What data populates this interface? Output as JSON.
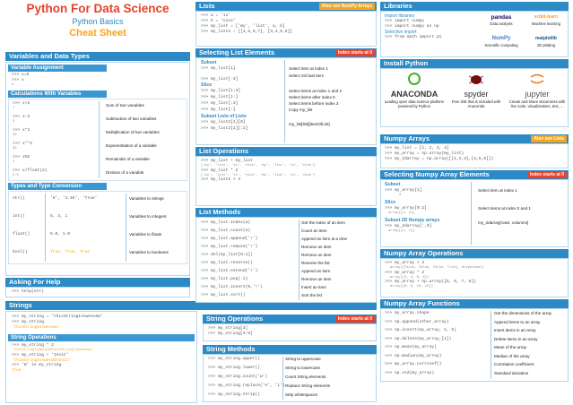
{
  "title": {
    "main": "Python For Data Science",
    "sub": "Python Basics",
    "sheet": "Cheat Sheet"
  },
  "vars": {
    "header": "Variables and Data Types",
    "assign_header": "Variable Assignment",
    "assign_code": [
      ">>> x=5",
      ">>> x"
    ],
    "assign_out": "5",
    "calc_header": "Calculations With Variables",
    "calc": [
      {
        "code": ">>> x+2",
        "out": "7",
        "desc": "Sum of two variables"
      },
      {
        "code": ">>> x-2",
        "out": "3",
        "desc": "Subtraction of two variables"
      },
      {
        "code": ">>> x*2",
        "out": "10",
        "desc": "Multiplication of two variables"
      },
      {
        "code": ">>> x**2",
        "out": "25",
        "desc": "Exponentiation of a variable"
      },
      {
        "code": ">>> x%2",
        "out": "1",
        "desc": "Remainder of a variable"
      },
      {
        "code": ">>> x/float(2)",
        "out": "2.5",
        "desc": "Division of a variable"
      }
    ],
    "types_header": "Types and Type Conversion",
    "types": [
      {
        "fn": "str()",
        "vals": "'5', '3.45', 'True'",
        "desc": "Variables to strings"
      },
      {
        "fn": "int()",
        "vals": "5, 3, 1",
        "desc": "Variables to integers"
      },
      {
        "fn": "float()",
        "vals": "5.0, 1.0",
        "desc": "Variables to floats"
      },
      {
        "fn": "bool()",
        "vals": "True, True, True",
        "desc": "Variables to booleans"
      }
    ]
  },
  "help": {
    "header": "Asking For Help",
    "code": ">>> help(str)"
  },
  "strings": {
    "header": "Strings",
    "code": [
      ">>> my_string = 'thisStringIsAwesome'",
      ">>> my_string"
    ],
    "out": "'thisStringIsAwesome'",
    "ops_header": "String Operations",
    "ops": [
      ">>> my_string * 2",
      "'thisStringIsAwesomethisStringIsAwesome'",
      ">>> my_string + 'Innit'",
      "'thisStringIsAwesomeInnit'",
      ">>> 'm' in my_string",
      "True"
    ]
  },
  "lists": {
    "header": "Lists",
    "badge": "Also see NumPy Arrays",
    "code": [
      ">>> a = 'is'",
      ">>> b = 'nice'",
      ">>> my_list = ['my', 'list', a, b]",
      ">>> my_list2 = [[4,5,6,7], [3,4,5,6]]"
    ],
    "sel_header": "Selecting List Elements",
    "sel_badge": "Index starts at 0",
    "subset": "Subset",
    "slice": "Slice",
    "sublists": "Subset Lists of Lists",
    "sel": [
      {
        "code": ">>> my_list[1]",
        "desc": "Select item at index 1"
      },
      {
        "code": ">>> my_list[-3]",
        "desc": "Select 3rd last item"
      },
      {
        "code": ">>> my_list[1:3]",
        "desc": "Select items at index 1 and 2"
      },
      {
        "code": ">>> my_list[1:]",
        "desc": "Select items after index 0"
      },
      {
        "code": ">>> my_list[:3]",
        "desc": "Select items before index 3"
      },
      {
        "code": ">>> my_list[:]",
        "desc": "Copy my_list"
      },
      {
        "code": ">>> my_list2[1][0]",
        "desc": "my_list[list][itemOfList]"
      },
      {
        "code": ">>> my_list2[1][:2]",
        "desc": ""
      }
    ],
    "ops_header": "List Operations",
    "ops": [
      ">>> my_list + my_list",
      "['my', 'list', 'is', 'nice', 'my', 'list', 'is', 'nice']",
      ">>> my_list * 2",
      "['my', 'list', 'is', 'nice', 'my', 'list', 'is', 'nice']",
      ">>> my_list2 > 4",
      "True"
    ],
    "meth_header": "List Methods",
    "meth": [
      {
        "code": ">>> my_list.index(a)",
        "desc": "Get the index of an item"
      },
      {
        "code": ">>> my_list.count(a)",
        "desc": "Count an item"
      },
      {
        "code": ">>> my_list.append('!')",
        "desc": "Append an item at a time"
      },
      {
        "code": ">>> my_list.remove('!')",
        "desc": "Remove an item"
      },
      {
        "code": ">>> del(my_list[0:1])",
        "desc": "Remove an item"
      },
      {
        "code": ">>> my_list.reverse()",
        "desc": "Reverse the list"
      },
      {
        "code": ">>> my_list.extend('!')",
        "desc": "Append an item"
      },
      {
        "code": ">>> my_list.pop(-1)",
        "desc": "Remove an item"
      },
      {
        "code": ">>> my_list.insert(0,'!')",
        "desc": "Insert an item"
      },
      {
        "code": ">>> my_list.sort()",
        "desc": "Sort the list"
      }
    ]
  },
  "strops": {
    "header": "String Operations",
    "badge": "Index starts at 0",
    "code": [
      ">>> my_string[3]",
      ">>> my_string[4:9]"
    ]
  },
  "strmeth": {
    "header": "String Methods",
    "rows": [
      {
        "code": ">>> my_string.upper()",
        "desc": "String to uppercase"
      },
      {
        "code": ">>> my_string.lower()",
        "desc": "String to lowercase"
      },
      {
        "code": ">>> my_string.count('w')",
        "desc": "Count String elements"
      },
      {
        "code": ">>> my_string.replace('e', 'i')",
        "desc": "Replace String elements"
      },
      {
        "code": ">>> my_string.strip()",
        "desc": "Strip whitespaces"
      }
    ]
  },
  "libs": {
    "header": "Libraries",
    "import_label": "Import libraries",
    "code": [
      ">>> import numpy",
      ">>> import numpy as np"
    ],
    "sel_label": "Selective import",
    "sel_code": ">>> from math import pi",
    "logos": [
      {
        "name": "pandas",
        "cap": "Data analysis"
      },
      {
        "name": "scikit-learn",
        "cap": "Machine learning"
      },
      {
        "name": "NumPy",
        "cap": "Scientific computing"
      },
      {
        "name": "matplotlib",
        "cap": "2D plotting"
      }
    ]
  },
  "install": {
    "header": "Install Python",
    "items": [
      {
        "name": "ANACONDA",
        "cap": "Leading open data science platform powered by Python"
      },
      {
        "name": "spyder",
        "cap": "Free IDE that is included with Anaconda"
      },
      {
        "name": "jupyter",
        "cap": "Create and share documents with live code, visualizations, text, ..."
      }
    ]
  },
  "numpy": {
    "header": "Numpy Arrays",
    "badge": "Also see Lists",
    "code": [
      ">>> my_list = [1, 2, 3, 4]",
      ">>> my_array = np.array(my_list)",
      ">>> my_2darray = np.array([[1,2,3],[4,5,6]])"
    ],
    "sel_header": "Selecting Numpy Array Elements",
    "sel_badge": "Index starts at 0",
    "subset": "Subset",
    "slice": "Slice",
    "sub2d": "Subset 2D Numpy arrays",
    "sel": [
      {
        "code": ">>> my_array[1]",
        "out": "2",
        "desc": "Select item at index 1"
      },
      {
        "code": ">>> my_array[0:2]",
        "out": "array([1, 2])",
        "desc": "Select items at index 0 and 1"
      },
      {
        "code": ">>> my_2darray[:,0]",
        "out": "array([1, 4])",
        "desc": "my_2darray[rows, columns]"
      }
    ],
    "ops_header": "Numpy Array Operations",
    "ops": [
      ">>> my_array > 3",
      "array([False, False, False, True], dtype=bool)",
      ">>> my_array * 2",
      "array([2, 4, 6, 8])",
      ">>> my_array + np.array([5, 6, 7, 8])",
      "array([6, 8, 10, 12])"
    ],
    "fn_header": "Numpy Array Functions",
    "fn": [
      {
        "code": ">>> my_array.shape",
        "desc": "Get the dimensions of the array"
      },
      {
        "code": ">>> np.append(other_array)",
        "desc": "Append items to an array"
      },
      {
        "code": ">>> np.insert(my_array, 1, 5)",
        "desc": "Insert items in an array"
      },
      {
        "code": ">>> np.delete(my_array,[1])",
        "desc": "Delete items in an array"
      },
      {
        "code": ">>> np.mean(my_array)",
        "desc": "Mean of the array"
      },
      {
        "code": ">>> np.median(my_array)",
        "desc": "Median of the array"
      },
      {
        "code": ">>> my_array.corrcoef()",
        "desc": "Correlation coefficient"
      },
      {
        "code": ">>> np.std(my_array)",
        "desc": "Standard deviation"
      }
    ]
  }
}
